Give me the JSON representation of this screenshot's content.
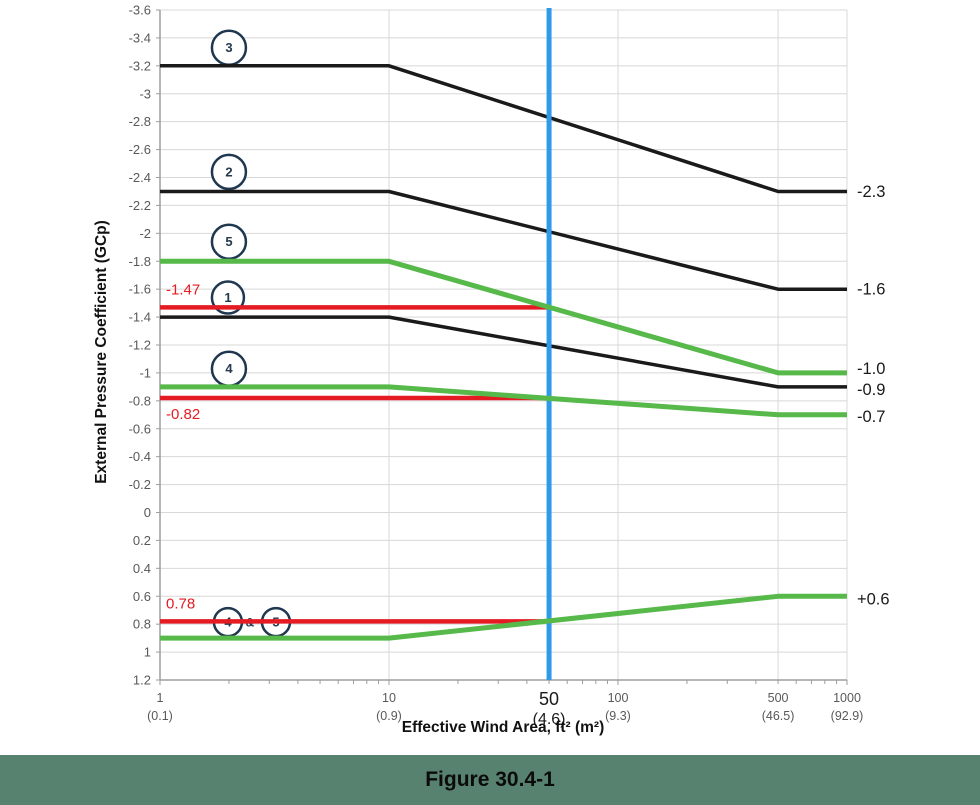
{
  "figure": {
    "caption": "Figure 30.4-1",
    "band_color": "#588270"
  },
  "chart_data": {
    "type": "line",
    "title": "Figure 30.4-1",
    "xlabel": "Effective Wind Area, ft² (m²)",
    "ylabel": "External Pressure Coefficient (GCp)",
    "x_scale": "log",
    "x_range": [
      1,
      1000
    ],
    "grid": true,
    "y_axis": {
      "min": -3.6,
      "max": 1.2,
      "step": 0.2,
      "inverted_negative_up": true,
      "tick_labels": [
        "-3.6",
        "-3.4",
        "-3.2",
        "-3",
        "-2.8",
        "-2.6",
        "-2.4",
        "-2.2",
        "-2",
        "-1.8",
        "-1.6",
        "-1.4",
        "-1.2",
        "-1",
        "-0.8",
        "-0.6",
        "-0.4",
        "-0.2",
        "0",
        "0.2",
        "0.4",
        "0.6",
        "0.8",
        "1",
        "1.2"
      ]
    },
    "x_ticks": [
      {
        "value": 1,
        "label": "1",
        "sub": "(0.1)",
        "emphasis": false
      },
      {
        "value": 10,
        "label": "10",
        "sub": "(0.9)",
        "emphasis": false
      },
      {
        "value": 50,
        "label": "50",
        "sub": "(4.6)",
        "emphasis": true
      },
      {
        "value": 100,
        "label": "100",
        "sub": "(9.3)",
        "emphasis": false
      },
      {
        "value": 500,
        "label": "500",
        "sub": "(46.5)",
        "emphasis": false
      },
      {
        "value": 1000,
        "label": "1000",
        "sub": "(92.9)",
        "emphasis": false
      }
    ],
    "v_gridlines": [
      10,
      50,
      100,
      500,
      1000
    ],
    "series": [
      {
        "name": "zone-3",
        "color": "#1a1a1a",
        "width": 3.5,
        "zorder": 1,
        "label_dy": 5.5,
        "points": [
          [
            1,
            -3.2
          ],
          [
            10,
            -3.2
          ],
          [
            500,
            -2.3
          ],
          [
            1000,
            -2.3
          ]
        ],
        "end_label": "-2.3"
      },
      {
        "name": "zone-2",
        "color": "#1a1a1a",
        "width": 3.5,
        "zorder": 1,
        "label_dy": 5.5,
        "points": [
          [
            1,
            -2.3
          ],
          [
            10,
            -2.3
          ],
          [
            500,
            -1.6
          ],
          [
            1000,
            -1.6
          ]
        ],
        "end_label": "-1.6"
      },
      {
        "name": "zone-1",
        "color": "#1a1a1a",
        "width": 3.5,
        "zorder": 1,
        "label_dy": 8,
        "points": [
          [
            1,
            -1.4
          ],
          [
            10,
            -1.4
          ],
          [
            500,
            -0.9
          ],
          [
            1000,
            -0.9
          ]
        ],
        "end_label": "-0.9"
      },
      {
        "name": "zone-5",
        "color": "#56b94a",
        "width": 5,
        "zorder": 3,
        "label_dy": 1,
        "points": [
          [
            1,
            -1.8
          ],
          [
            10,
            -1.8
          ],
          [
            500,
            -1.0
          ],
          [
            1000,
            -1.0
          ]
        ],
        "end_label": "-1.0"
      },
      {
        "name": "zone-4",
        "color": "#56b94a",
        "width": 5,
        "zorder": 3,
        "label_dy": 7,
        "points": [
          [
            1,
            -0.9
          ],
          [
            10,
            -0.9
          ],
          [
            500,
            -0.7
          ],
          [
            1000,
            -0.7
          ]
        ],
        "end_label": "-0.7"
      },
      {
        "name": "zones-4-5-positive",
        "color": "#56b94a",
        "width": 5,
        "zorder": 3,
        "label_dy": 8,
        "points": [
          [
            1,
            0.9
          ],
          [
            10,
            0.9
          ],
          [
            500,
            0.6
          ],
          [
            1000,
            0.6
          ]
        ],
        "end_label": "+0.6"
      }
    ],
    "reference_lines": [
      {
        "name": "ref-neg-1.47",
        "gcp": -1.47,
        "x_start": 1,
        "x_end": 50,
        "label": "-1.47",
        "label_pos": "above"
      },
      {
        "name": "ref-neg-0.82",
        "gcp": -0.82,
        "x_start": 1,
        "x_end": 50,
        "label": "-0.82",
        "label_pos": "below"
      },
      {
        "name": "ref-pos-0.78",
        "gcp": 0.78,
        "x_start": 1,
        "x_end": 50,
        "label": "0.78",
        "label_pos": "above"
      }
    ],
    "marker_line": {
      "x": 50
    },
    "zone_badges": [
      {
        "label": "3",
        "area": 2.0,
        "gcp": -3.33,
        "r": 17
      },
      {
        "label": "2",
        "area": 2.0,
        "gcp": -2.44,
        "r": 17
      },
      {
        "label": "5",
        "area": 2.0,
        "gcp": -1.94,
        "r": 17
      },
      {
        "label": "1",
        "area": 1.98,
        "gcp": -1.54,
        "r": 16
      },
      {
        "label": "4",
        "area": 2.0,
        "gcp": -1.03,
        "r": 17
      },
      {
        "label": "4",
        "area": 1.98,
        "gcp": 0.785,
        "r": 14
      },
      {
        "label": "&",
        "area": 2.47,
        "gcp": 0.785,
        "plain": true
      },
      {
        "label": "5",
        "area": 3.21,
        "gcp": 0.785,
        "r": 14
      }
    ],
    "colors": {
      "grid": "#d8d8d8",
      "axis": "#9d9d9d",
      "tick_text": "#595959",
      "black_series": "#1a1a1a",
      "green_series": "#56b94a",
      "red_ref": "#e41b23",
      "blue_marker": "#2e9be8",
      "badge_ring": "#1f3850",
      "label_text": "#1a1a1a"
    }
  }
}
